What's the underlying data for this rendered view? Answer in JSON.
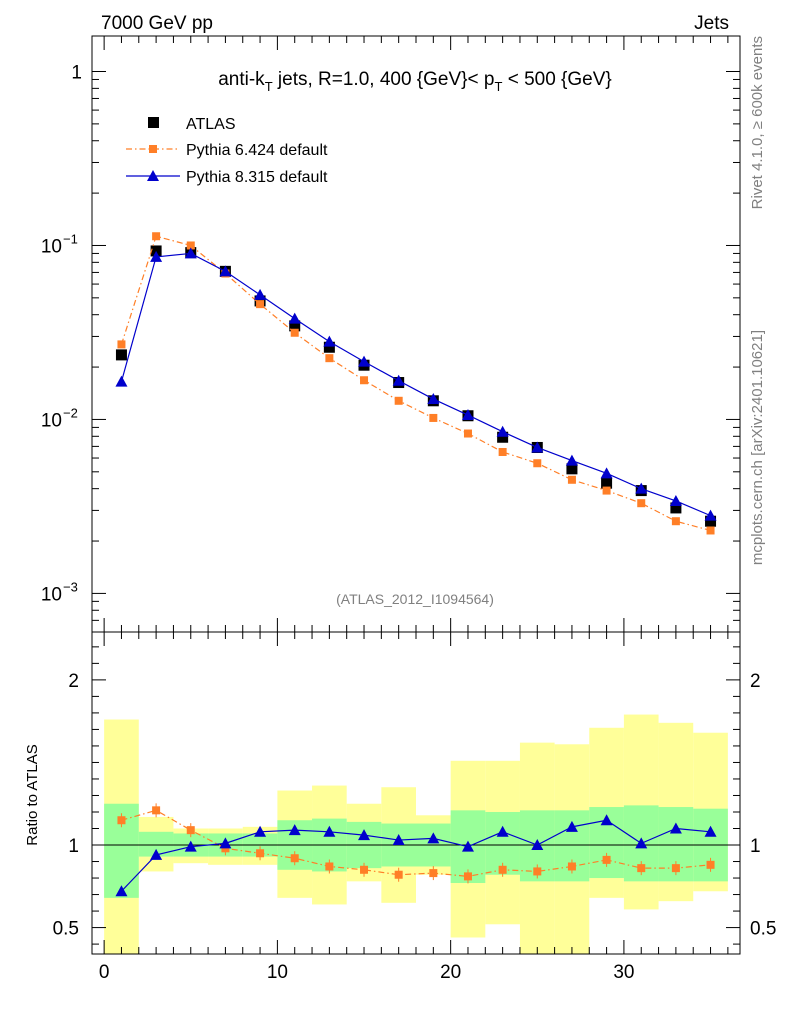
{
  "header": {
    "left": "7000 GeV pp",
    "right": "Jets"
  },
  "side_labels": {
    "rivet": "Rivet 4.1.0, ≥ 600k events",
    "mcplots": "mcplots.cern.ch [arXiv:2401.10621]"
  },
  "chart_data": {
    "type": "scatter",
    "title_parts": {
      "a": "anti-k",
      "a_sub": "T",
      "b": " jets, R=1.0, 400 {GeV}< p",
      "b_sub": "T",
      "c": " < 500 {GeV}"
    },
    "watermark": "(ATLAS_2012_I1094564)",
    "x": [
      1,
      3,
      5,
      7,
      9,
      11,
      13,
      15,
      17,
      19,
      21,
      23,
      25,
      27,
      29,
      31,
      33,
      35
    ],
    "bin_edges": [
      0,
      2,
      4,
      6,
      8,
      10,
      12,
      14,
      16,
      18,
      20,
      22,
      24,
      26,
      28,
      30,
      32,
      34,
      36
    ],
    "xlim": [
      -0.7,
      36.7
    ],
    "main": {
      "yscale": "log",
      "ylim": [
        0.0006,
        1.6
      ],
      "yticks": [
        {
          "value": 1,
          "label": "1"
        },
        {
          "value": 0.1,
          "label": "10",
          "exp": "−1"
        },
        {
          "value": 0.01,
          "label": "10",
          "exp": "−2"
        },
        {
          "value": 0.001,
          "label": "10",
          "exp": "−3"
        }
      ],
      "series": [
        {
          "name": "ATLAS",
          "color": "#000000",
          "marker": "square",
          "values": [
            0.0235,
            0.093,
            0.091,
            0.071,
            0.048,
            0.0345,
            0.026,
            0.0205,
            0.0163,
            0.0128,
            0.0105,
            0.0079,
            0.0069,
            0.0052,
            0.0043,
            0.0039,
            0.0031,
            0.0026
          ]
        },
        {
          "name": "Pythia 6.424 default",
          "color": "#ff7f27",
          "marker": "small-square",
          "line": "dashdot",
          "values": [
            0.027,
            0.113,
            0.1,
            0.069,
            0.046,
            0.0315,
            0.0225,
            0.0168,
            0.0128,
            0.0102,
            0.0083,
            0.0065,
            0.0056,
            0.0045,
            0.0039,
            0.0033,
            0.0026,
            0.0023
          ]
        },
        {
          "name": "Pythia 8.315 default",
          "color": "#0000cc",
          "marker": "triangle",
          "line": "solid",
          "values": [
            0.0165,
            0.086,
            0.09,
            0.071,
            0.052,
            0.038,
            0.028,
            0.0215,
            0.0167,
            0.0131,
            0.0106,
            0.0085,
            0.0069,
            0.0058,
            0.0049,
            0.004,
            0.0034,
            0.0028
          ]
        }
      ]
    },
    "ratio": {
      "ylabel": "Ratio to ATLAS",
      "ylim": [
        0.34,
        2.29
      ],
      "yticks": [
        {
          "value": 0.5,
          "label": "0.5"
        },
        {
          "value": 1,
          "label": "1"
        },
        {
          "value": 2,
          "label": "2"
        }
      ],
      "xticks": [
        {
          "value": 0,
          "label": "0"
        },
        {
          "value": 10,
          "label": "10"
        },
        {
          "value": 20,
          "label": "20"
        },
        {
          "value": 30,
          "label": "30"
        }
      ],
      "band_inner": {
        "color": "#99ff99",
        "low": [
          0.68,
          0.93,
          0.93,
          0.93,
          0.93,
          0.85,
          0.84,
          0.86,
          0.87,
          0.87,
          0.77,
          0.82,
          0.78,
          0.78,
          0.8,
          0.78,
          0.78,
          0.78
        ],
        "high": [
          1.25,
          1.08,
          1.07,
          1.07,
          1.07,
          1.15,
          1.16,
          1.14,
          1.13,
          1.13,
          1.21,
          1.2,
          1.21,
          1.21,
          1.23,
          1.24,
          1.23,
          1.22
        ]
      },
      "band_outer": {
        "color": "#ffff99",
        "low": [
          0.3,
          0.84,
          0.89,
          0.88,
          0.88,
          0.68,
          0.64,
          0.78,
          0.65,
          0.82,
          0.44,
          0.52,
          0.3,
          0.3,
          0.68,
          0.61,
          0.66,
          0.72
        ],
        "high": [
          1.76,
          1.17,
          1.1,
          1.1,
          1.11,
          1.33,
          1.36,
          1.25,
          1.35,
          1.18,
          1.51,
          1.51,
          1.62,
          1.61,
          1.71,
          1.79,
          1.74,
          1.68
        ]
      },
      "series": [
        {
          "name": "Pythia 6.424 default",
          "color": "#ff7f27",
          "values": [
            1.15,
            1.21,
            1.09,
            0.98,
            0.95,
            0.92,
            0.87,
            0.85,
            0.82,
            0.83,
            0.81,
            0.85,
            0.84,
            0.87,
            0.91,
            0.86,
            0.86,
            0.88
          ]
        },
        {
          "name": "Pythia 8.315 default",
          "color": "#0000cc",
          "values": [
            0.72,
            0.94,
            0.99,
            1.01,
            1.08,
            1.09,
            1.08,
            1.06,
            1.03,
            1.04,
            0.99,
            1.08,
            1.0,
            1.11,
            1.15,
            1.01,
            1.1,
            1.08
          ]
        }
      ]
    }
  }
}
